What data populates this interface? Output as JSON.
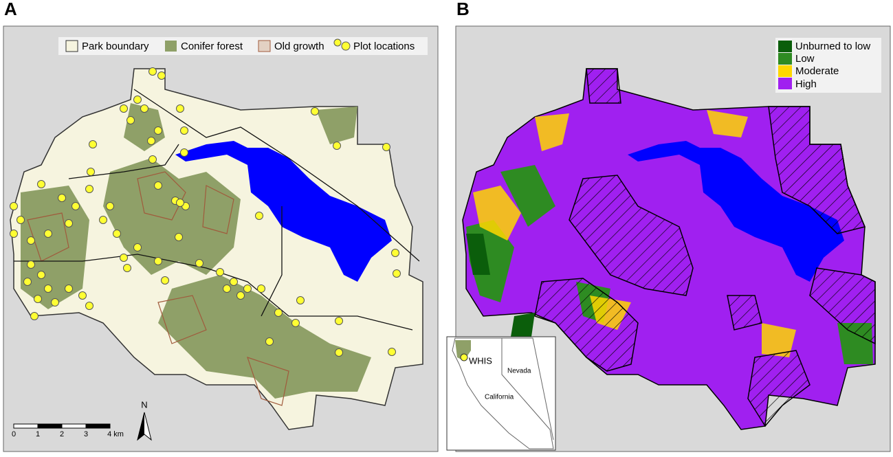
{
  "panels": [
    {
      "label": "A",
      "legend": [
        "Park boundary",
        "Conifer forest",
        "Old growth",
        "Plot locations"
      ],
      "scale_bar": {
        "labels": [
          "0",
          "1",
          "2",
          "3",
          "4 km"
        ]
      },
      "north": "N"
    },
    {
      "label": "B",
      "legend": [
        "Unburned to low",
        "Low",
        "Moderate",
        "High"
      ],
      "inset": {
        "labels": [
          "WHIS",
          "Nevada",
          "California"
        ]
      }
    }
  ]
}
